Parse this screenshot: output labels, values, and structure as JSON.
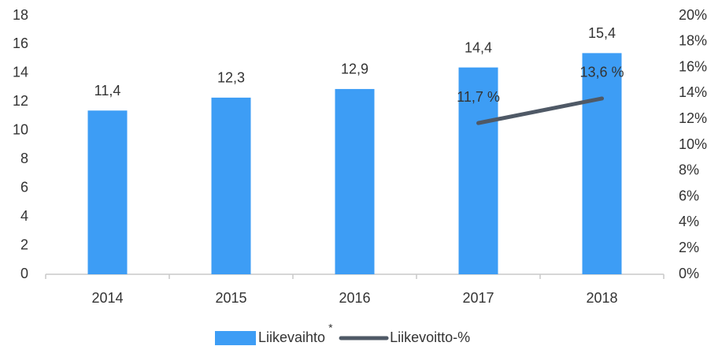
{
  "chart_data": {
    "type": "combo",
    "categories": [
      "2014",
      "2015",
      "2016",
      "2017",
      "2018"
    ],
    "series": [
      {
        "name": "Liikevaihto",
        "type": "bar",
        "color": "#3d9df5",
        "axis": "y",
        "values": [
          11.4,
          12.3,
          12.9,
          14.4,
          15.4
        ],
        "value_labels": [
          "11,4",
          "12,3",
          "12,9",
          "14,4",
          "15,4"
        ]
      },
      {
        "name": "Liikevoitto-%",
        "type": "line",
        "color": "#4f5966",
        "axis": "y2",
        "values": [
          null,
          null,
          null,
          11.7,
          13.6
        ],
        "value_labels": [
          null,
          null,
          null,
          "11,7 %",
          "13,6 %"
        ]
      }
    ],
    "legend_note": "*",
    "ylim": [
      0,
      18
    ],
    "yticks": [
      0,
      2,
      4,
      6,
      8,
      10,
      12,
      14,
      16,
      18
    ],
    "y2lim": [
      0,
      20
    ],
    "y2ticks": [
      {
        "value": 0,
        "label": "0%"
      },
      {
        "value": 2,
        "label": "2%"
      },
      {
        "value": 4,
        "label": "4%"
      },
      {
        "value": 6,
        "label": "6%"
      },
      {
        "value": 8,
        "label": "8%"
      },
      {
        "value": 10,
        "label": "10%"
      },
      {
        "value": 12,
        "label": "12%"
      },
      {
        "value": 14,
        "label": "14%"
      },
      {
        "value": 16,
        "label": "16%"
      },
      {
        "value": 18,
        "label": "18%"
      },
      {
        "value": 20,
        "label": "20%"
      }
    ],
    "legend": "bottom"
  }
}
